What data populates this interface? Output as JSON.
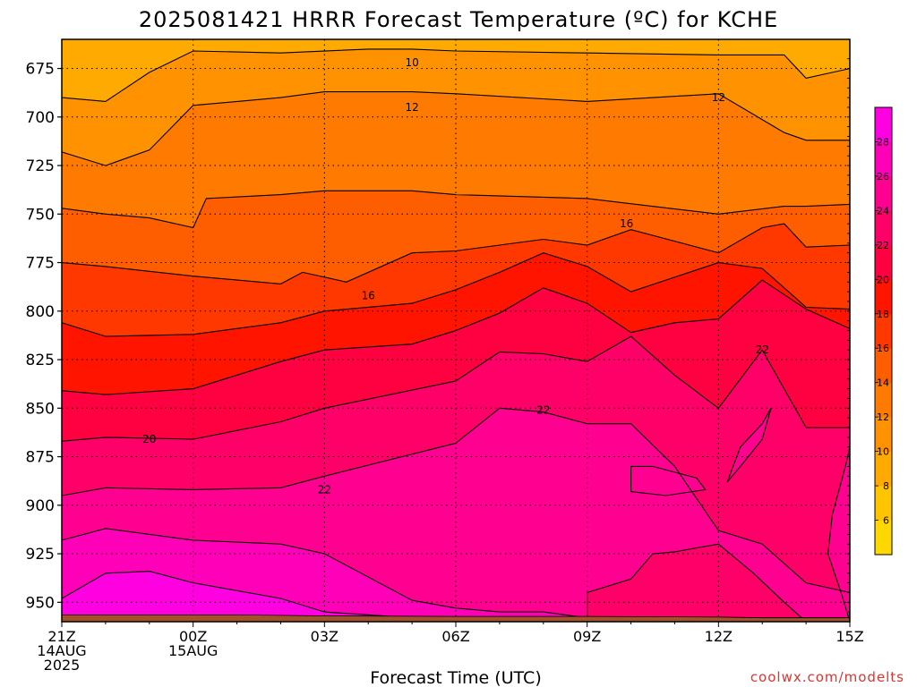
{
  "chart_data": {
    "type": "heatmap",
    "title": "2025081421 HRRR Forecast Temperature (ºC) for KCHE",
    "xlabel": "Forecast Time (UTC)",
    "ylabel": "",
    "credit": "coolwx.com/modelts",
    "x_range_hours": [
      0,
      18
    ],
    "y_range": [
      660,
      960
    ],
    "y_inverted": true,
    "grid": true,
    "x_ticks": [
      {
        "hour": 0,
        "lines": [
          "21Z",
          "14AUG",
          "2025"
        ]
      },
      {
        "hour": 3,
        "lines": [
          "00Z",
          "15AUG"
        ]
      },
      {
        "hour": 6,
        "lines": [
          "03Z"
        ]
      },
      {
        "hour": 9,
        "lines": [
          "06Z"
        ]
      },
      {
        "hour": 12,
        "lines": [
          "09Z"
        ]
      },
      {
        "hour": 15,
        "lines": [
          "12Z"
        ]
      },
      {
        "hour": 18,
        "lines": [
          "15Z"
        ]
      }
    ],
    "y_ticks": [
      675,
      700,
      725,
      750,
      775,
      800,
      825,
      850,
      875,
      900,
      925,
      950
    ],
    "colorbar": {
      "levels": [
        4,
        6,
        8,
        10,
        12,
        14,
        16,
        18,
        20,
        22,
        24,
        26,
        28,
        30
      ],
      "labels": [
        "6",
        "8",
        "10",
        "12",
        "14",
        "16",
        "18",
        "20",
        "22",
        "24",
        "26",
        "28"
      ],
      "colors": [
        "#ffd800",
        "#ffc600",
        "#ffaa00",
        "#ff9200",
        "#ff7a00",
        "#ff5e00",
        "#ff3800",
        "#ff1400",
        "#ff0040",
        "#ff0068",
        "#ff0090",
        "#ff00b8",
        "#ff00e0"
      ],
      "placement": "right"
    },
    "ground_color": "#a0522d",
    "series": [
      {
        "level": 8,
        "x": [
          0,
          1,
          3,
          5,
          7,
          9,
          12,
          15,
          16.5,
          18
        ],
        "y": [
          652,
          652,
          652,
          652,
          652,
          652,
          652,
          652,
          652,
          652
        ]
      },
      {
        "level": 10,
        "x": [
          0,
          1,
          2,
          3,
          5,
          7,
          8,
          9,
          12,
          15,
          16.5,
          17,
          18
        ],
        "y": [
          690,
          692,
          677,
          666,
          667,
          665,
          665,
          666,
          667,
          668,
          668,
          680,
          675
        ]
      },
      {
        "level": 12,
        "x": [
          0,
          1,
          2,
          3,
          5,
          6,
          8,
          9,
          12,
          15,
          16.5,
          17,
          18
        ],
        "y": [
          718,
          725,
          717,
          694,
          690,
          687,
          687,
          688,
          692,
          688,
          708,
          712,
          712
        ]
      },
      {
        "level": 14,
        "x": [
          0,
          1,
          2,
          3,
          3.3,
          5,
          6,
          8,
          9,
          12,
          15,
          16.5,
          17,
          18
        ],
        "y": [
          747,
          750,
          752,
          757,
          742,
          740,
          738,
          738,
          740,
          742,
          750,
          746,
          746,
          745
        ]
      },
      {
        "level": 16,
        "x": [
          0,
          1,
          3,
          5,
          5.5,
          6.5,
          8,
          9,
          10,
          11,
          12,
          13,
          15,
          16,
          16.5,
          17,
          18
        ],
        "y": [
          775,
          777,
          782,
          786,
          780,
          785,
          770,
          769,
          766,
          763,
          766,
          758,
          770,
          757,
          755,
          767,
          766
        ]
      },
      {
        "level": 18,
        "x": [
          0,
          1,
          3,
          5,
          6,
          8,
          9,
          10,
          11,
          12,
          13,
          15,
          16,
          17,
          18
        ],
        "y": [
          806,
          813,
          812,
          806,
          800,
          796,
          789,
          780,
          770,
          777,
          790,
          775,
          778,
          798,
          799
        ]
      },
      {
        "level": 20,
        "x": [
          0,
          1,
          3,
          5,
          6,
          8,
          9,
          10,
          11,
          12,
          13,
          14,
          15,
          16,
          17,
          18
        ],
        "y": [
          841,
          843,
          840,
          826,
          820,
          817,
          810,
          801,
          788,
          796,
          811,
          806,
          804,
          784,
          799,
          809
        ]
      },
      {
        "level": 22,
        "x": [
          0,
          1,
          3,
          5,
          6,
          9,
          10,
          11,
          12,
          13,
          14,
          15,
          16,
          17,
          18
        ],
        "y": [
          867,
          865,
          866,
          857,
          850,
          836,
          821,
          822,
          826,
          813,
          833,
          850,
          820,
          860,
          860
        ]
      },
      {
        "level": 24,
        "x": [
          0,
          1,
          3,
          5,
          6,
          9,
          10,
          11,
          12,
          13,
          14,
          15,
          16,
          17,
          18
        ],
        "y": [
          895,
          891,
          892,
          891,
          885,
          868,
          850,
          852,
          858,
          858,
          880,
          913,
          920,
          940,
          945
        ]
      },
      {
        "level": 26,
        "x": [
          0,
          1,
          3,
          5,
          6,
          8,
          9,
          10,
          11,
          12,
          15,
          16,
          17,
          18
        ],
        "y": [
          918,
          912,
          918,
          920,
          925,
          949,
          953,
          955,
          955,
          958,
          958,
          958,
          958,
          958
        ]
      },
      {
        "level": 28,
        "x": [
          0,
          1,
          2,
          3,
          5,
          6,
          8,
          9
        ],
        "y": [
          948,
          935,
          934,
          940,
          948,
          955,
          958,
          958
        ]
      }
    ],
    "blobs": [
      {
        "level": 22,
        "x": [
          12,
          13,
          13.5,
          14,
          15,
          15.8,
          16.5,
          17,
          16.8,
          15.5,
          14.5,
          13,
          12
        ],
        "y": [
          945,
          938,
          925,
          924,
          920,
          935,
          950,
          960,
          960,
          960,
          960,
          960,
          958
        ]
      },
      {
        "level": 24,
        "x": [
          15.5,
          16,
          16.2,
          16,
          15.5,
          15.2,
          15.5
        ],
        "y": [
          870,
          858,
          850,
          866,
          880,
          888,
          870
        ]
      },
      {
        "level": 24,
        "x": [
          13,
          13.5,
          14.5,
          14.7,
          13.8,
          13,
          13
        ],
        "y": [
          880,
          880,
          886,
          892,
          895,
          893,
          880
        ]
      },
      {
        "level": 24,
        "x": [
          17.6,
          17.9,
          18,
          18,
          17.8,
          17.5,
          17.6
        ],
        "y": [
          905,
          880,
          870,
          960,
          945,
          925,
          905
        ]
      }
    ],
    "contour_labels": [
      {
        "text": "10",
        "hour": 8,
        "p": 672
      },
      {
        "text": "12",
        "hour": 8,
        "p": 695
      },
      {
        "text": "12",
        "hour": 15,
        "p": 690
      },
      {
        "text": "16",
        "hour": 12.9,
        "p": 755
      },
      {
        "text": "16",
        "hour": 7,
        "p": 792
      },
      {
        "text": "20",
        "hour": 2,
        "p": 866
      },
      {
        "text": "22",
        "hour": 6,
        "p": 892
      },
      {
        "text": "22",
        "hour": 11,
        "p": 851
      },
      {
        "text": "22",
        "hour": 16,
        "p": 820
      }
    ]
  }
}
